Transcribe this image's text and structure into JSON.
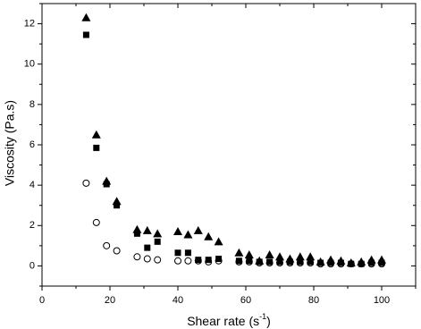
{
  "chart_data": {
    "type": "scatter",
    "xlabel": [
      "Shear rate (s",
      "-1",
      ")"
    ],
    "ylabel": "Viscosity (Pa.s)",
    "x": [
      13,
      16,
      19,
      22,
      28,
      31,
      34,
      40,
      43,
      46,
      49,
      52,
      58,
      61,
      64,
      67,
      70,
      73,
      76,
      79,
      82,
      85,
      88,
      91,
      94,
      97,
      100
    ],
    "series": [
      {
        "marker": "triangle",
        "color": "#000000",
        "values": [
          12.3,
          6.5,
          4.2,
          3.2,
          1.8,
          1.75,
          1.6,
          1.7,
          1.55,
          1.75,
          1.45,
          1.2,
          0.65,
          0.55,
          0.25,
          0.55,
          0.45,
          0.35,
          0.45,
          0.45,
          0.2,
          0.3,
          0.25,
          0.15,
          0.2,
          0.3,
          0.3
        ]
      },
      {
        "marker": "square",
        "color": "#000000",
        "values": [
          11.45,
          5.85,
          4.05,
          3.0,
          1.6,
          0.9,
          1.2,
          0.65,
          0.65,
          0.3,
          0.3,
          0.35,
          0.25,
          0.25,
          0.2,
          0.2,
          0.2,
          0.2,
          0.2,
          0.2,
          0.15,
          0.15,
          0.15,
          0.1,
          0.1,
          0.15,
          0.15
        ]
      },
      {
        "marker": "open-circle",
        "color": "#000000",
        "values": [
          4.1,
          2.15,
          1.0,
          0.75,
          0.45,
          0.35,
          0.3,
          0.25,
          0.25,
          0.25,
          0.2,
          0.25,
          0.2,
          0.2,
          0.15,
          0.15,
          0.15,
          0.15,
          0.15,
          0.15,
          0.1,
          0.1,
          0.1,
          0.1,
          0.1,
          0.1,
          0.1
        ]
      }
    ],
    "xlim": [
      0,
      110
    ],
    "xticks": [
      0,
      20,
      40,
      60,
      80,
      100
    ],
    "xminorticks": [
      10,
      30,
      50,
      70,
      90,
      110
    ],
    "ylim": [
      -1,
      13
    ],
    "yticks": [
      0,
      2,
      4,
      6,
      8,
      10,
      12
    ],
    "yminorticks": [
      -1,
      1,
      3,
      5,
      7,
      9,
      11,
      13
    ]
  }
}
